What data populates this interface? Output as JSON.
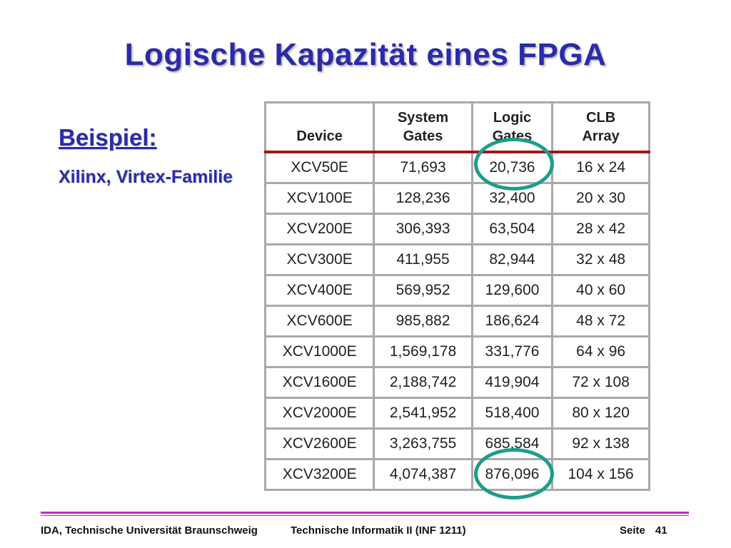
{
  "title": "Logische Kapazität eines FPGA",
  "example_label": "Beispiel:",
  "subtitle": "Xilinx, Virtex-Familie",
  "table": {
    "headers": [
      {
        "line1": "",
        "line2": "Device"
      },
      {
        "line1": "System",
        "line2": "Gates"
      },
      {
        "line1": "Logic",
        "line2": "Gates"
      },
      {
        "line1": "CLB",
        "line2": "Array"
      }
    ],
    "rows": [
      [
        "XCV50E",
        "71,693",
        "20,736",
        "16 x 24"
      ],
      [
        "XCV100E",
        "128,236",
        "32,400",
        "20 x 30"
      ],
      [
        "XCV200E",
        "306,393",
        "63,504",
        "28 x 42"
      ],
      [
        "XCV300E",
        "411,955",
        "82,944",
        "32 x 48"
      ],
      [
        "XCV400E",
        "569,952",
        "129,600",
        "40 x 60"
      ],
      [
        "XCV600E",
        "985,882",
        "186,624",
        "48 x 72"
      ],
      [
        "XCV1000E",
        "1,569,178",
        "331,776",
        "64 x 96"
      ],
      [
        "XCV1600E",
        "2,188,742",
        "419,904",
        "72 x 108"
      ],
      [
        "XCV2000E",
        "2,541,952",
        "518,400",
        "80 x 120"
      ],
      [
        "XCV2600E",
        "3,263,755",
        "685,584",
        "92 x 138"
      ],
      [
        "XCV3200E",
        "4,074,387",
        "876,096",
        "104 x 156"
      ]
    ]
  },
  "highlight_color": "#1e9c8a",
  "title_color": "#2b2ba8",
  "footer": {
    "left": "IDA, Technische Universität Braunschweig",
    "center": "Technische Informatik II (INF 1211)",
    "page_label": "Seite",
    "page_number": "41"
  }
}
